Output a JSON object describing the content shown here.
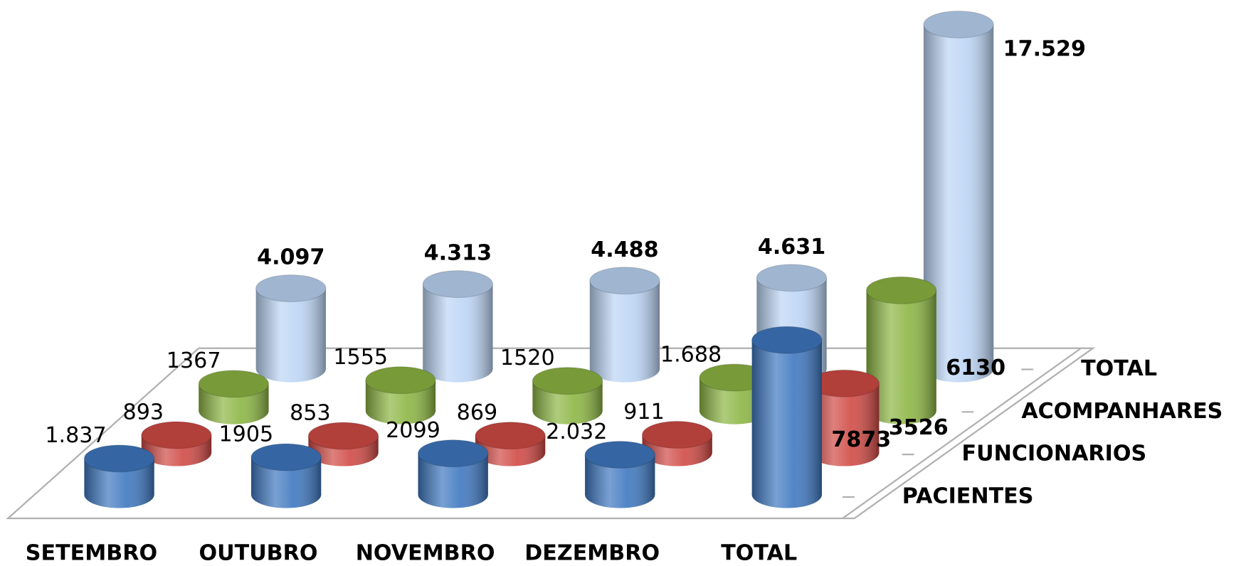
{
  "chart_data": {
    "type": "bar3d",
    "categories": [
      "SETEMBRO",
      "OUTUBRO",
      "NOVEMBRO",
      "DEZEMBRO",
      "TOTAL"
    ],
    "series": [
      {
        "name": "PACIENTES",
        "color": "#3f78c0",
        "values": [
          1837,
          1905,
          2099,
          2032,
          7873
        ],
        "value_labels": [
          "1.837",
          "1905",
          "2099",
          "2.032",
          "7873"
        ]
      },
      {
        "name": "FUNCIONARIOS",
        "color": "#d04a45",
        "values": [
          893,
          853,
          869,
          911,
          3526
        ],
        "value_labels": [
          "893",
          "853",
          "869",
          "911",
          "3526"
        ]
      },
      {
        "name": "ACOMPANHARES",
        "color": "#8db644",
        "values": [
          1367,
          1555,
          1520,
          1688,
          6130
        ],
        "value_labels": [
          "1367",
          "1555",
          "1520",
          "1.688",
          "6130"
        ]
      },
      {
        "name": "TOTAL",
        "color": "#bcd5f5",
        "values": [
          4097,
          4313,
          4488,
          4631,
          17529
        ],
        "value_labels": [
          "4.097",
          "4.313",
          "4.488",
          "4.631",
          "17.529"
        ]
      }
    ]
  }
}
